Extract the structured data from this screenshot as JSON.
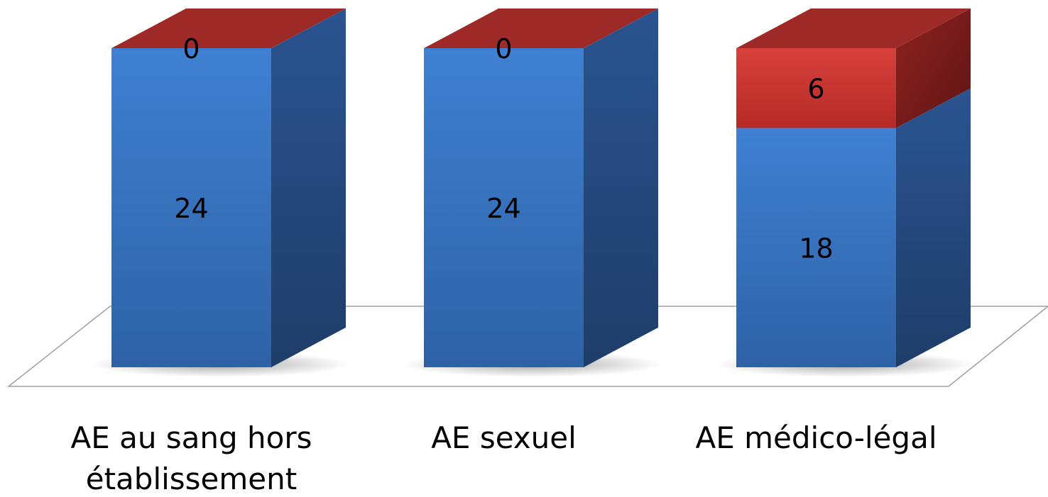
{
  "chart_data": {
    "type": "bar",
    "stacked": true,
    "three_d": true,
    "categories": [
      [
        "AE au sang hors",
        "établissement"
      ],
      [
        "AE sexuel"
      ],
      [
        "AE médico-légal"
      ]
    ],
    "series": [
      {
        "values": [
          24,
          24,
          18
        ],
        "color": "#3A78C5"
      },
      {
        "values": [
          0,
          0,
          6
        ],
        "color": "#C9302C"
      }
    ],
    "ylim": [
      0,
      24
    ],
    "data_labels": true,
    "legend": "none",
    "grid": false,
    "title": "",
    "xlabel": "",
    "ylabel": ""
  },
  "colors": {
    "blue_front": "#3A78C5",
    "blue_side": "#24497A",
    "red_front": "#C9302C",
    "red_side": "#7A1D1D",
    "red_top": "#9E2A28",
    "floor_stroke": "#A0A0A0"
  }
}
